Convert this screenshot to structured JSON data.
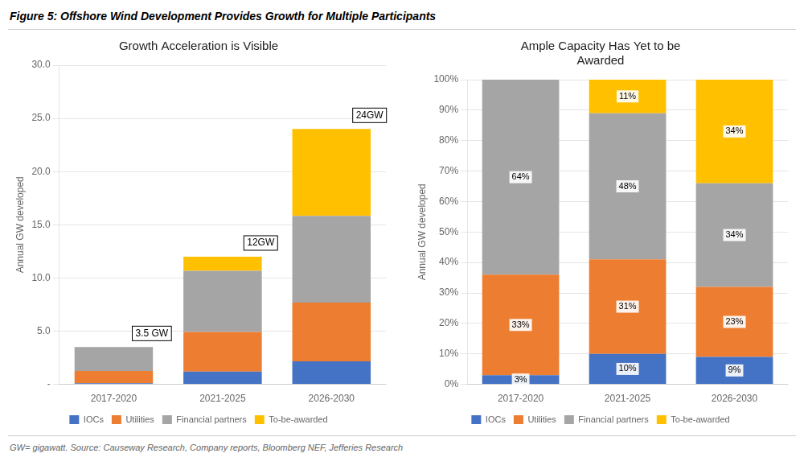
{
  "title": "Figure 5: Offshore Wind Development Provides Growth for Multiple Participants",
  "annotations": [
    {
      "text": "GW= gigawatt. Source: Causeway Research, Company reports, Bloomberg NEF, Jefferies Research"
    }
  ],
  "chart_data": [
    {
      "type": "bar",
      "title": "Growth Acceleration is Visible",
      "ylabel": "Annual GW developed",
      "categories": [
        "2017-2020",
        "2021-2025",
        "2026-2030"
      ],
      "series": [
        {
          "name": "IOCs",
          "color": "#4472C4",
          "values": [
            0.105,
            1.2,
            2.16
          ]
        },
        {
          "name": "Utilities",
          "color": "#ED7D31",
          "values": [
            1.155,
            3.72,
            5.52
          ]
        },
        {
          "name": "Financial partners",
          "color": "#A5A5A5",
          "values": [
            2.24,
            5.76,
            8.16
          ]
        },
        {
          "name": "To-be-awarded",
          "color": "#FFC000",
          "values": [
            0.0,
            1.32,
            8.16
          ]
        }
      ],
      "stacked": true,
      "ylim": [
        0,
        30
      ],
      "yticks": [
        {
          "value": 0,
          "label": "-"
        },
        {
          "value": 5,
          "label": "5.0"
        },
        {
          "value": 10,
          "label": "10.0"
        },
        {
          "value": 15,
          "label": "15.0"
        },
        {
          "value": 20,
          "label": "20.0"
        },
        {
          "value": 25,
          "label": "25.0"
        },
        {
          "value": 30,
          "label": "30.0"
        }
      ],
      "grid": true,
      "legend": "bottom",
      "annotations": [
        {
          "text": "3.5 GW",
          "x": "2017-2020",
          "y": 3.5
        },
        {
          "text": "12GW",
          "x": "2021-2025",
          "y": 12
        },
        {
          "text": "24GW",
          "x": "2026-2030",
          "y": 24
        }
      ]
    },
    {
      "type": "bar",
      "title": "Ample Capacity Has Yet to be\nAwarded",
      "ylabel": "Annual GW developed",
      "categories": [
        "2017-2020",
        "2021-2025",
        "2026-2030"
      ],
      "series": [
        {
          "name": "IOCs",
          "color": "#4472C4",
          "values": [
            3,
            10,
            9
          ],
          "value_labels": [
            "3%",
            "10%",
            "9%"
          ]
        },
        {
          "name": "Utilities",
          "color": "#ED7D31",
          "values": [
            33,
            31,
            23
          ],
          "value_labels": [
            "33%",
            "31%",
            "23%"
          ]
        },
        {
          "name": "Financial partners",
          "color": "#A5A5A5",
          "values": [
            64,
            48,
            34
          ],
          "value_labels": [
            "64%",
            "48%",
            "34%"
          ]
        },
        {
          "name": "To-be-awarded",
          "color": "#FFC000",
          "values": [
            0,
            11,
            34
          ],
          "value_labels": [
            null,
            "11%",
            "34%"
          ]
        }
      ],
      "stacked": true,
      "data_labels": true,
      "ylim": [
        0,
        100
      ],
      "yticks": [
        {
          "value": 0,
          "label": "0%"
        },
        {
          "value": 10,
          "label": "10%"
        },
        {
          "value": 20,
          "label": "20%"
        },
        {
          "value": 30,
          "label": "30%"
        },
        {
          "value": 40,
          "label": "40%"
        },
        {
          "value": 50,
          "label": "50%"
        },
        {
          "value": 60,
          "label": "60%"
        },
        {
          "value": 70,
          "label": "70%"
        },
        {
          "value": 80,
          "label": "80%"
        },
        {
          "value": 90,
          "label": "90%"
        },
        {
          "value": 100,
          "label": "100%"
        }
      ],
      "grid": true,
      "legend": "bottom"
    }
  ]
}
